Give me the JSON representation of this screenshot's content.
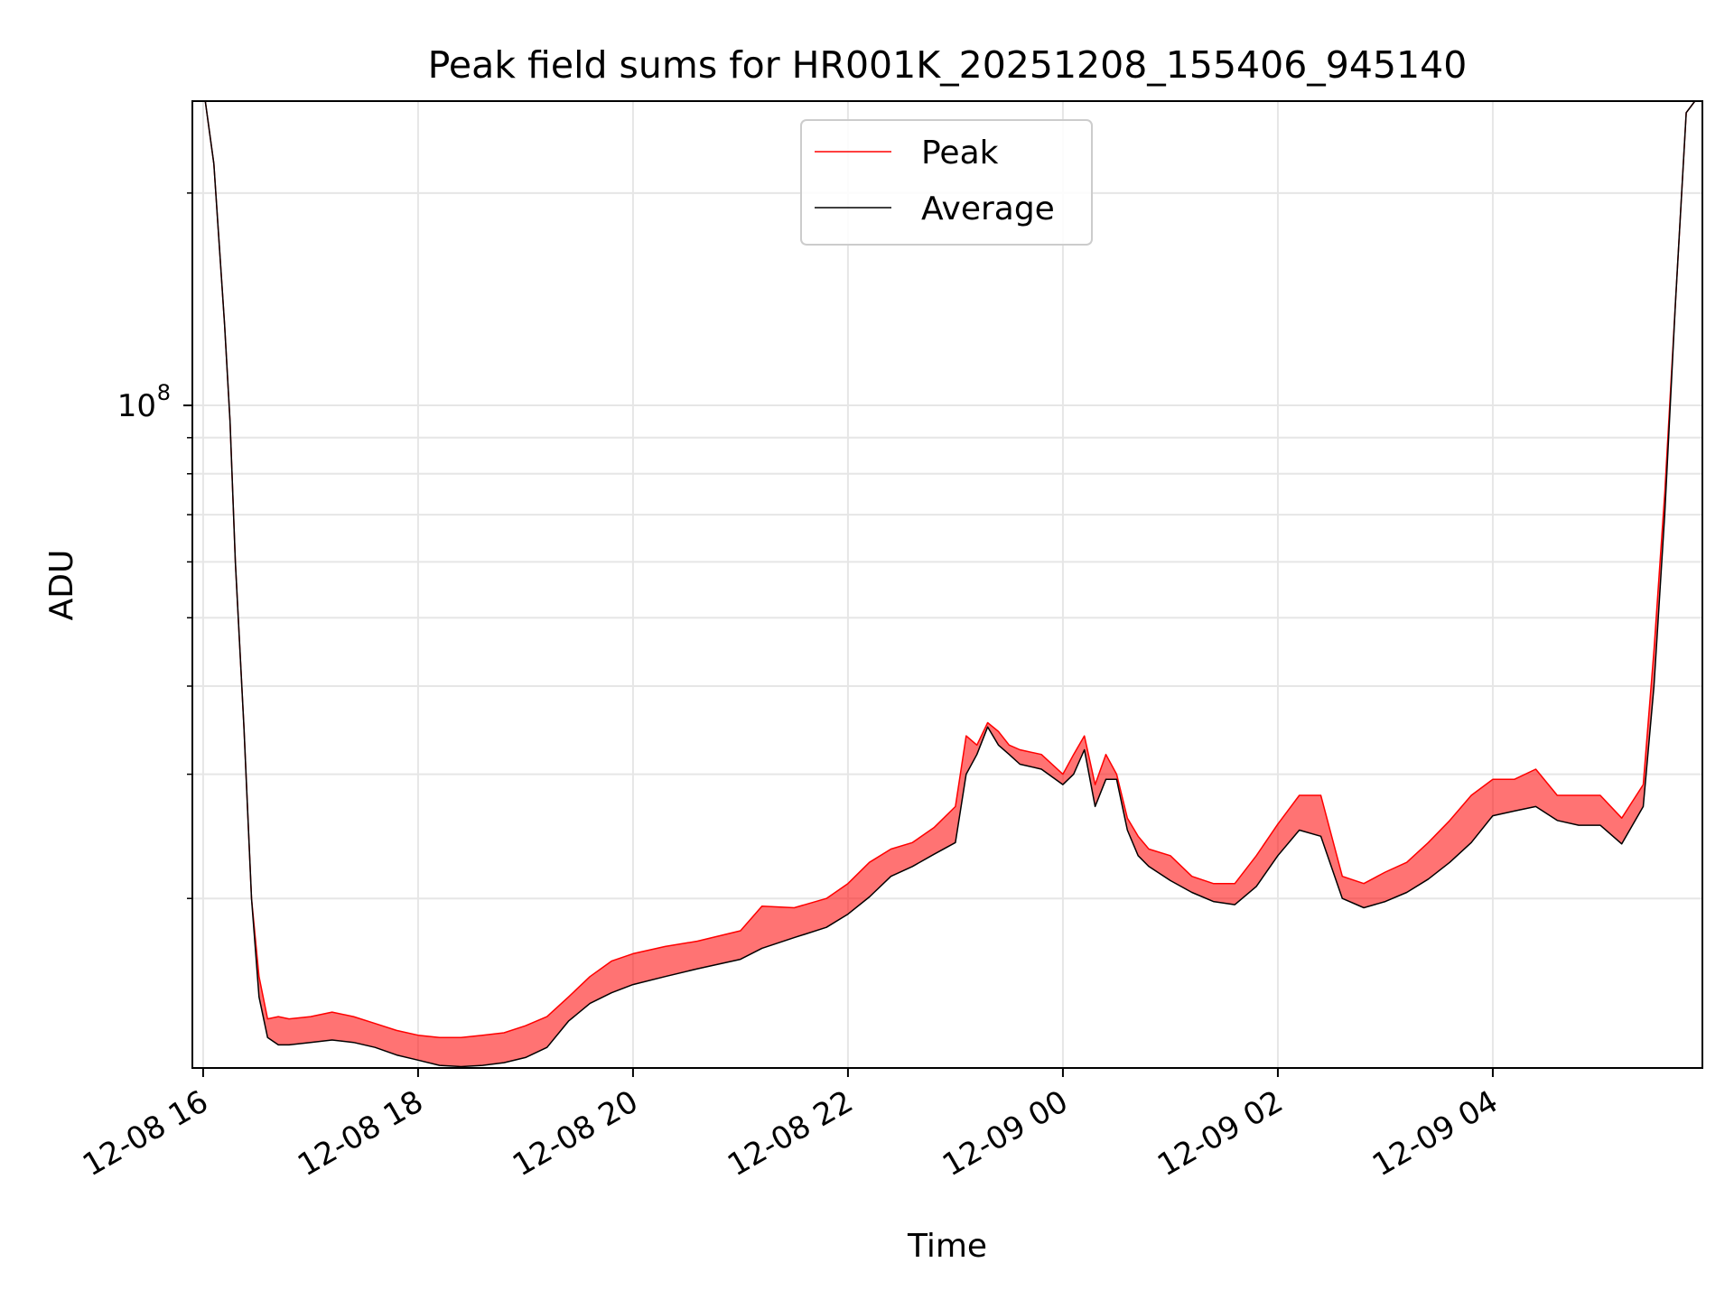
{
  "chart_data": {
    "type": "line",
    "title": "Peak field sums for HR001K_20251208_155406_945140",
    "xlabel": "Time",
    "ylabel": "ADU",
    "yscale": "log",
    "x_unit": "hours since 12-08 16:00",
    "xlim": [
      -0.1,
      13.95
    ],
    "ylim": [
      11500000.0,
      270000000.0
    ],
    "x_ticks": [
      {
        "x": 0,
        "label": "12-08 16"
      },
      {
        "x": 2,
        "label": "12-08 18"
      },
      {
        "x": 4,
        "label": "12-08 20"
      },
      {
        "x": 6,
        "label": "12-08 22"
      },
      {
        "x": 8,
        "label": "12-09 00"
      },
      {
        "x": 10,
        "label": "12-09 02"
      },
      {
        "x": 12,
        "label": "12-09 04"
      }
    ],
    "y_major_ticks": [
      {
        "value": 100000000,
        "base": "10",
        "exponent": "8"
      }
    ],
    "y_minor_ticks": [
      20000000,
      30000000,
      40000000,
      50000000,
      60000000,
      70000000,
      80000000,
      90000000,
      200000000
    ],
    "grid": true,
    "legend": {
      "position": "upper-center",
      "entries": [
        {
          "label": "Peak",
          "color": "#ff0000"
        },
        {
          "label": "Average",
          "color": "#000000"
        }
      ]
    },
    "series": [
      {
        "name": "Average",
        "color": "#000000",
        "x": [
          0.02,
          0.1,
          0.2,
          0.25,
          0.3,
          0.38,
          0.45,
          0.52,
          0.6,
          0.7,
          0.8,
          1.0,
          1.2,
          1.4,
          1.6,
          1.8,
          2.0,
          2.2,
          2.4,
          2.6,
          2.8,
          3.0,
          3.2,
          3.4,
          3.6,
          3.8,
          4.0,
          4.3,
          4.6,
          5.0,
          5.2,
          5.5,
          5.8,
          6.0,
          6.2,
          6.4,
          6.6,
          6.8,
          7.0,
          7.1,
          7.2,
          7.3,
          7.4,
          7.5,
          7.6,
          7.8,
          8.0,
          8.1,
          8.2,
          8.3,
          8.4,
          8.5,
          8.6,
          8.7,
          8.8,
          9.0,
          9.2,
          9.4,
          9.6,
          9.8,
          10.0,
          10.2,
          10.4,
          10.6,
          10.8,
          11.0,
          11.2,
          11.4,
          11.6,
          11.8,
          12.0,
          12.2,
          12.4,
          12.6,
          12.8,
          13.0,
          13.2,
          13.4,
          13.5,
          13.6,
          13.7,
          13.8,
          13.88
        ],
        "y": [
          270000000,
          220000000,
          130000000,
          95000000,
          60000000,
          35000000,
          20000000,
          14500000,
          12700000,
          12400000,
          12400000,
          12500000,
          12600000,
          12500000,
          12300000,
          12000000,
          11800000,
          11600000,
          11550000,
          11600000,
          11700000,
          11900000,
          12300000,
          13400000,
          14200000,
          14700000,
          15100000,
          15500000,
          15900000,
          16400000,
          17000000,
          17600000,
          18200000,
          19000000,
          20100000,
          21500000,
          22200000,
          23100000,
          24000000,
          30000000,
          32000000,
          35000000,
          33000000,
          32000000,
          31000000,
          30500000,
          29000000,
          30000000,
          32500000,
          27000000,
          29500000,
          29500000,
          25000000,
          23000000,
          22200000,
          21200000,
          20400000,
          19800000,
          19600000,
          20800000,
          23000000,
          25000000,
          24500000,
          20000000,
          19400000,
          19800000,
          20400000,
          21300000,
          22500000,
          24000000,
          26200000,
          26600000,
          27000000,
          25800000,
          25400000,
          25400000,
          23900000,
          27000000,
          40000000,
          70000000,
          140000000,
          260000000,
          270000000
        ]
      },
      {
        "name": "Peak",
        "color": "#ff0000",
        "x": [
          0.02,
          0.1,
          0.2,
          0.25,
          0.3,
          0.38,
          0.45,
          0.52,
          0.6,
          0.7,
          0.8,
          1.0,
          1.2,
          1.4,
          1.6,
          1.8,
          2.0,
          2.2,
          2.4,
          2.6,
          2.8,
          3.0,
          3.2,
          3.4,
          3.6,
          3.8,
          4.0,
          4.3,
          4.6,
          5.0,
          5.2,
          5.5,
          5.8,
          6.0,
          6.2,
          6.4,
          6.6,
          6.8,
          7.0,
          7.1,
          7.2,
          7.3,
          7.4,
          7.5,
          7.6,
          7.8,
          8.0,
          8.1,
          8.2,
          8.3,
          8.4,
          8.5,
          8.6,
          8.7,
          8.8,
          9.0,
          9.2,
          9.4,
          9.6,
          9.8,
          10.0,
          10.2,
          10.4,
          10.6,
          10.8,
          11.0,
          11.2,
          11.4,
          11.6,
          11.8,
          12.0,
          12.2,
          12.4,
          12.6,
          12.8,
          13.0,
          13.2,
          13.4,
          13.5,
          13.6,
          13.7,
          13.8,
          13.88
        ],
        "y": [
          270000000,
          220000000,
          130000000,
          95000000,
          60000000,
          35000000,
          20000000,
          15500000,
          13500000,
          13600000,
          13500000,
          13600000,
          13800000,
          13600000,
          13300000,
          13000000,
          12800000,
          12700000,
          12700000,
          12800000,
          12900000,
          13200000,
          13600000,
          14500000,
          15500000,
          16300000,
          16700000,
          17100000,
          17400000,
          18000000,
          19500000,
          19400000,
          20000000,
          21000000,
          22500000,
          23500000,
          24000000,
          25200000,
          27000000,
          34000000,
          33000000,
          35500000,
          34500000,
          33000000,
          32500000,
          32000000,
          30000000,
          32000000,
          34000000,
          29000000,
          32000000,
          30000000,
          26000000,
          24500000,
          23500000,
          23000000,
          21500000,
          21000000,
          21000000,
          23000000,
          25500000,
          28000000,
          28000000,
          21500000,
          21000000,
          21800000,
          22500000,
          24000000,
          25800000,
          28000000,
          29500000,
          29500000,
          30500000,
          28000000,
          28000000,
          28000000,
          26000000,
          29000000,
          45000000,
          75000000,
          140000000,
          260000000,
          270000000
        ]
      }
    ]
  }
}
